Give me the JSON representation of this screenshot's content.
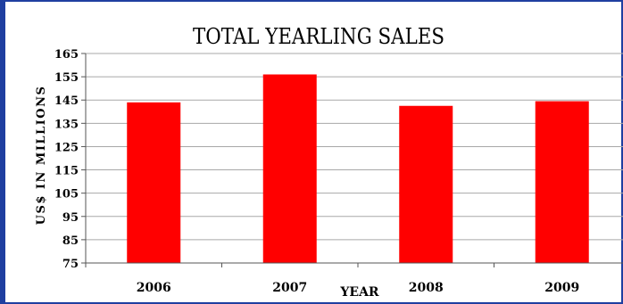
{
  "chart_data": {
    "type": "bar",
    "title": "TOTAL YEARLING SALES",
    "xlabel": "YEAR",
    "ylabel": "US$ IN MILLIONS",
    "categories": [
      "2006",
      "2007",
      "2008",
      "2009"
    ],
    "values": [
      144,
      156,
      142.5,
      144.5
    ],
    "ylim": [
      75,
      165
    ],
    "yticks": [
      "75",
      "85",
      "95",
      "105",
      "115",
      "125",
      "135",
      "145",
      "155",
      "165"
    ],
    "grid": true,
    "legend": "none",
    "colors": {
      "bar": "#ff0000",
      "grid": "#a8a8a8",
      "frame": "#1f3fa0"
    }
  }
}
